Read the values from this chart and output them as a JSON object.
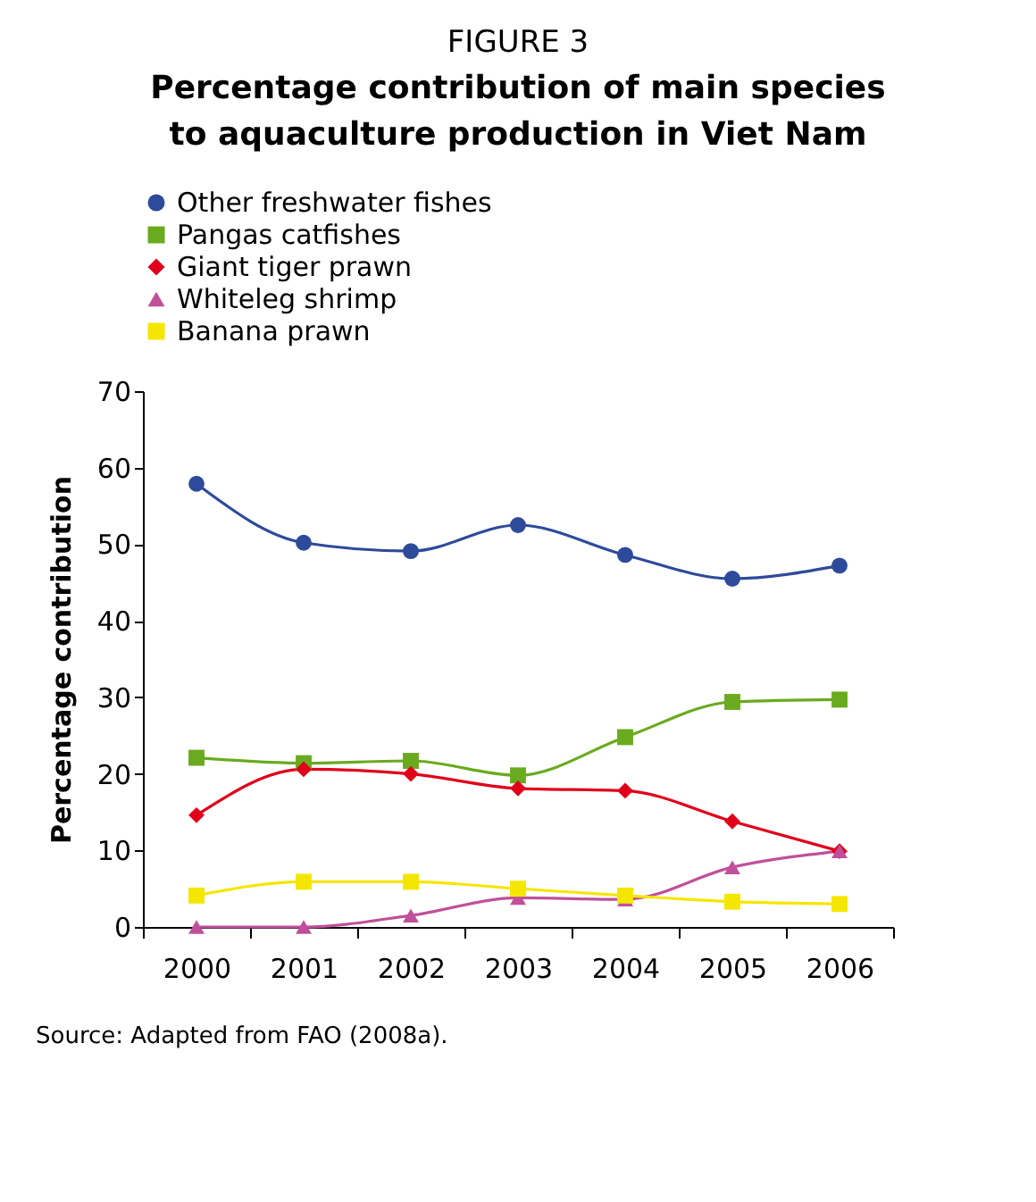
{
  "chart_data": {
    "type": "line",
    "subtitle": "FIGURE 3",
    "title": "Percentage contribution of main species to aquaculture production in Viet Nam",
    "ylabel": "Percentage contribution",
    "categories": [
      "2000",
      "2001",
      "2002",
      "2003",
      "2004",
      "2005",
      "2006"
    ],
    "series": [
      {
        "name": "Other freshwater fishes",
        "color": "#2e4a9a",
        "marker": "circle",
        "values": [
          57.9,
          50.2,
          49.1,
          52.5,
          48.6,
          45.5,
          47.2
        ]
      },
      {
        "name": "Pangas catfishes",
        "color": "#6aaa1e",
        "marker": "square",
        "values": [
          22.1,
          21.4,
          21.7,
          19.8,
          24.8,
          29.4,
          29.7
        ]
      },
      {
        "name": "Giant tiger prawn",
        "color": "#e0001a",
        "marker": "diamond",
        "values": [
          14.6,
          20.6,
          20.0,
          18.1,
          17.8,
          13.8,
          9.9
        ]
      },
      {
        "name": "Whiteleg shrimp",
        "color": "#c0509a",
        "marker": "triangle",
        "values": [
          0,
          0,
          1.5,
          3.8,
          3.6,
          7.8,
          9.9
        ]
      },
      {
        "name": "Banana prawn",
        "color": "#f5e600",
        "marker": "square",
        "values": [
          4.1,
          5.9,
          5.9,
          5.0,
          4.1,
          3.3,
          3.0
        ]
      }
    ],
    "ylim": [
      0,
      70
    ],
    "yticks": [
      0,
      10,
      20,
      30,
      40,
      50,
      60,
      70
    ],
    "grid": false,
    "legend": "top",
    "line_style": "solid",
    "annotations": [
      "Source: Adapted from FAO (2008a)."
    ]
  }
}
